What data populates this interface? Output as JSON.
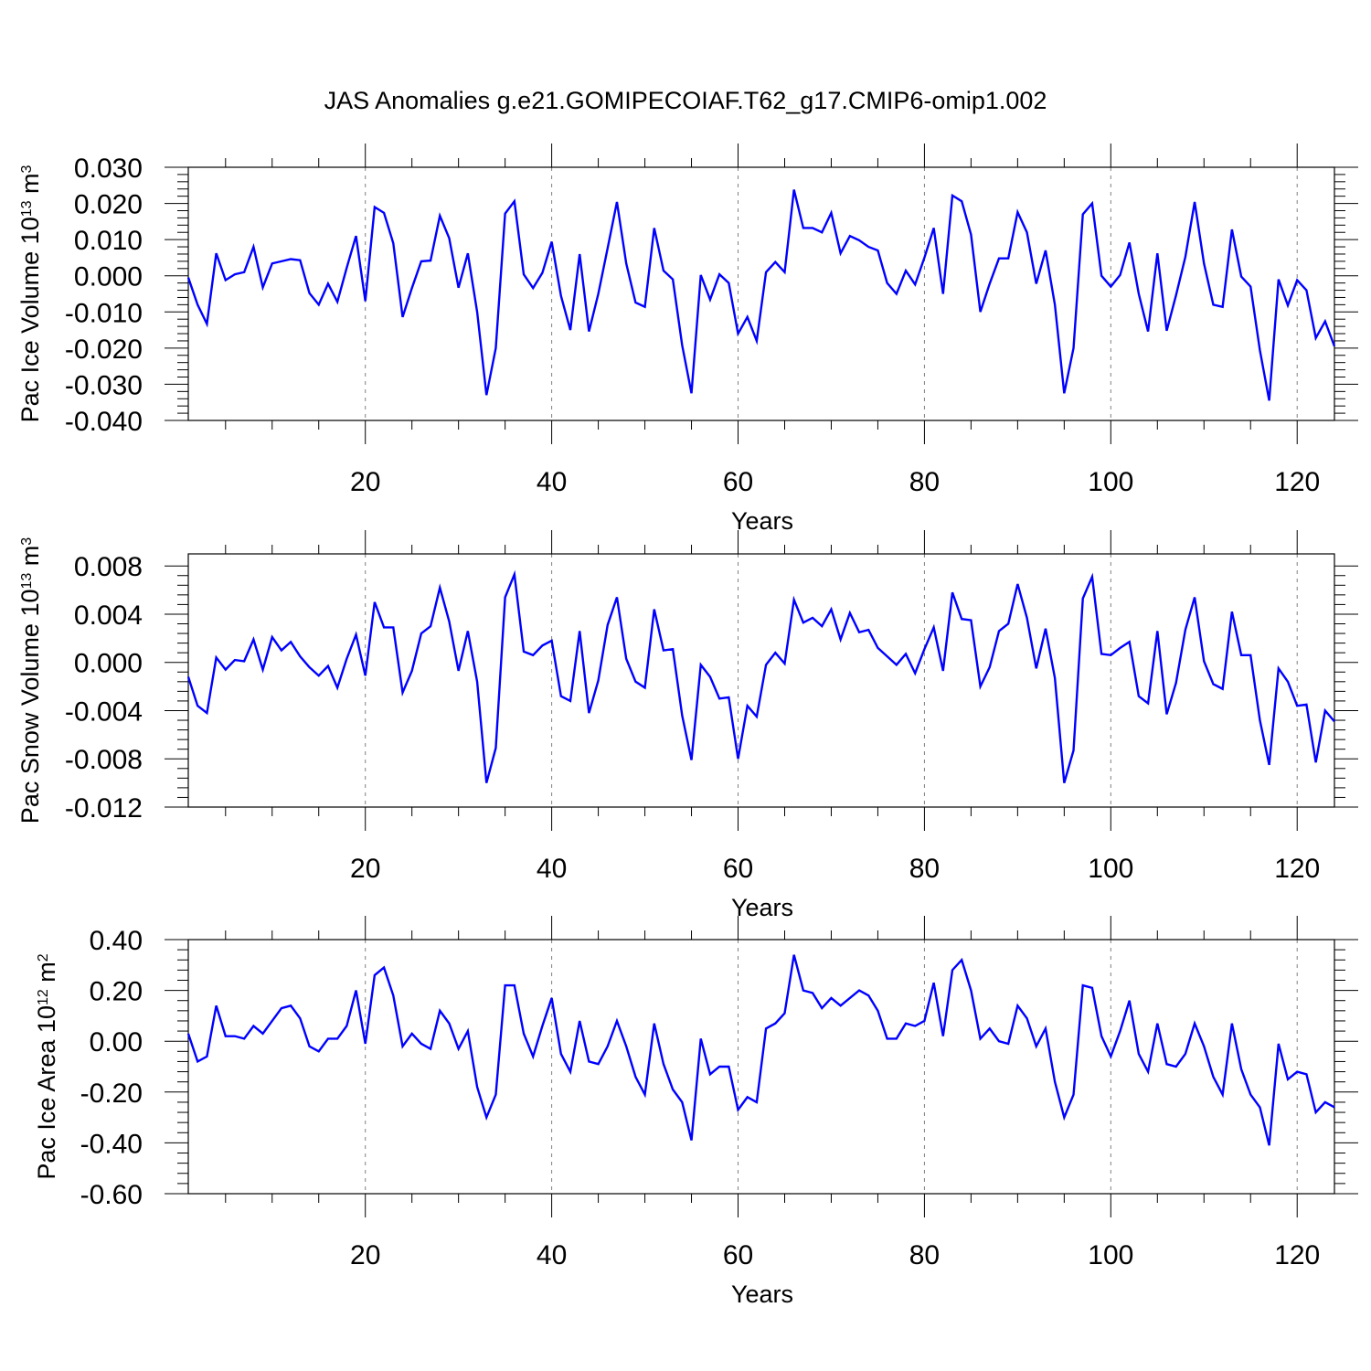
{
  "title": "JAS Anomalies g.e21.GOMIPECOIAF.T62_g17.CMIP6-omip1.002",
  "line_color": "#0000ff",
  "grid_color": "#808080",
  "chart_data": [
    {
      "type": "line",
      "ylabel": "Pac Ice Volume 10",
      "ylabel_exp": "13",
      "ylabel_unit": " m",
      "ylabel_unit_exp": "3",
      "xlabel": "Years",
      "xlim": [
        1,
        124
      ],
      "ylim": [
        -0.04,
        0.03
      ],
      "xticks": [
        20,
        40,
        60,
        80,
        100,
        120
      ],
      "xtick_labels": [
        "20",
        "40",
        "60",
        "80",
        "100",
        "120"
      ],
      "yticks": [
        -0.04,
        -0.03,
        -0.02,
        -0.01,
        0.0,
        0.01,
        0.02,
        0.03
      ],
      "ytick_labels": [
        "-0.040",
        "-0.030",
        "-0.020",
        "-0.010",
        "0.000",
        "0.010",
        "0.020",
        "0.030"
      ],
      "grid": "dashed vertical at major x ticks",
      "series": [
        {
          "name": "Pac Ice Volume",
          "values": [
            -0.0005,
            -0.008,
            -0.0133,
            0.0062,
            -0.0012,
            0.0004,
            0.001,
            0.008,
            -0.0032,
            0.0034,
            0.004,
            0.0046,
            0.0043,
            -0.0048,
            -0.008,
            -0.0022,
            -0.0072,
            0.0022,
            0.011,
            -0.007,
            0.019,
            0.0174,
            0.009,
            -0.0114,
            -0.0034,
            0.004,
            0.0042,
            0.0166,
            0.0104,
            -0.0033,
            0.0062,
            -0.01,
            -0.033,
            -0.02,
            0.0172,
            0.0206,
            0.0004,
            -0.0034,
            0.0008,
            0.0094,
            -0.0056,
            -0.015,
            0.006,
            -0.0154,
            -0.005,
            0.0076,
            0.0204,
            0.0034,
            -0.0074,
            -0.0086,
            0.0132,
            0.0014,
            -0.001,
            -0.0192,
            -0.0325,
            0.0002,
            -0.0066,
            0.0004,
            -0.002,
            -0.016,
            -0.0114,
            -0.018,
            0.001,
            0.0038,
            0.001,
            0.0238,
            0.0132,
            0.0132,
            0.012,
            0.0174,
            0.0062,
            0.011,
            0.0098,
            0.008,
            0.007,
            -0.002,
            -0.005,
            0.0014,
            -0.0024,
            0.005,
            0.0132,
            -0.005,
            0.0222,
            0.0206,
            0.0114,
            -0.01,
            -0.0022,
            0.0048,
            0.0048,
            0.0176,
            0.012,
            -0.0022,
            0.007,
            -0.008,
            -0.0325,
            -0.02,
            0.017,
            0.02,
            0.0,
            -0.003,
            0.0002,
            0.0092,
            -0.005,
            -0.0154,
            0.0062,
            -0.0152,
            -0.0054,
            0.0052,
            0.0204,
            0.0034,
            -0.008,
            -0.0086,
            0.0128,
            -0.0002,
            -0.003,
            -0.0206,
            -0.0345,
            -0.001,
            -0.0082,
            -0.0012,
            -0.004,
            -0.0172,
            -0.0126,
            -0.0195
          ]
        }
      ]
    },
    {
      "type": "line",
      "ylabel": "Pac Snow Volume 10",
      "ylabel_exp": "13",
      "ylabel_unit": " m",
      "ylabel_unit_exp": "3",
      "xlabel": "Years",
      "xlim": [
        1,
        124
      ],
      "ylim": [
        -0.012,
        0.009
      ],
      "xticks": [
        20,
        40,
        60,
        80,
        100,
        120
      ],
      "xtick_labels": [
        "20",
        "40",
        "60",
        "80",
        "100",
        "120"
      ],
      "yticks": [
        -0.012,
        -0.008,
        -0.004,
        0.0,
        0.004,
        0.008
      ],
      "ytick_labels": [
        "-0.012",
        "-0.008",
        "-0.004",
        "0.000",
        "0.004",
        "0.008"
      ],
      "grid": "dashed vertical at major x ticks",
      "series": [
        {
          "name": "Pac Snow Volume",
          "values": [
            -0.0012,
            -0.0036,
            -0.0042,
            0.0004,
            -0.0006,
            0.0002,
            0.0001,
            0.0019,
            -0.0006,
            0.0021,
            0.001,
            0.0017,
            0.0005,
            -0.0004,
            -0.0011,
            -0.0003,
            -0.0021,
            0.0003,
            0.0023,
            -0.0011,
            0.005,
            0.0029,
            0.0029,
            -0.0025,
            -0.0007,
            0.0024,
            0.003,
            0.0062,
            0.0034,
            -0.0007,
            0.0026,
            -0.0016,
            -0.01,
            -0.0071,
            0.0054,
            0.0073,
            0.0009,
            0.0006,
            0.0014,
            0.0018,
            -0.0028,
            -0.0032,
            0.0026,
            -0.0042,
            -0.0015,
            0.0031,
            0.0054,
            0.0003,
            -0.0016,
            -0.0021,
            0.0044,
            0.001,
            0.0011,
            -0.0044,
            -0.0081,
            -0.0002,
            -0.0012,
            -0.003,
            -0.0029,
            -0.008,
            -0.0036,
            -0.0045,
            -0.0002,
            0.0008,
            -0.0001,
            0.0052,
            0.0033,
            0.0037,
            0.003,
            0.0044,
            0.0019,
            0.0041,
            0.0025,
            0.0027,
            0.0012,
            0.0005,
            -0.0002,
            0.0007,
            -0.0009,
            0.0011,
            0.0029,
            -0.0007,
            0.0058,
            0.0036,
            0.0035,
            -0.002,
            -0.0004,
            0.0026,
            0.0032,
            0.0065,
            0.0037,
            -0.0005,
            0.0028,
            -0.0013,
            -0.01,
            -0.0073,
            0.0053,
            0.0071,
            0.0007,
            0.0006,
            0.0012,
            0.0017,
            -0.0028,
            -0.0034,
            0.0026,
            -0.0043,
            -0.0017,
            0.0027,
            0.0054,
            0.0001,
            -0.0018,
            -0.0022,
            0.0042,
            0.0006,
            0.0006,
            -0.0048,
            -0.0085,
            -0.0005,
            -0.0016,
            -0.0036,
            -0.0035,
            -0.0083,
            -0.004,
            -0.0049
          ]
        }
      ]
    },
    {
      "type": "line",
      "ylabel": "Pac Ice Area 10",
      "ylabel_exp": "12",
      "ylabel_unit": " m",
      "ylabel_unit_exp": "2",
      "xlabel": "Years",
      "xlim": [
        1,
        124
      ],
      "ylim": [
        -0.6,
        0.4
      ],
      "xticks": [
        20,
        40,
        60,
        80,
        100,
        120
      ],
      "xtick_labels": [
        "20",
        "40",
        "60",
        "80",
        "100",
        "120"
      ],
      "yticks": [
        -0.6,
        -0.4,
        -0.2,
        0.0,
        0.2,
        0.4
      ],
      "ytick_labels": [
        "-0.60",
        "-0.40",
        "-0.20",
        "0.00",
        "0.20",
        "0.40"
      ],
      "grid": "dashed vertical at major x ticks",
      "series": [
        {
          "name": "Pac Ice Area",
          "values": [
            0.03,
            -0.08,
            -0.06,
            0.14,
            0.02,
            0.02,
            0.01,
            0.06,
            0.03,
            0.08,
            0.13,
            0.14,
            0.09,
            -0.02,
            -0.04,
            0.01,
            0.01,
            0.06,
            0.2,
            -0.01,
            0.26,
            0.29,
            0.18,
            -0.02,
            0.03,
            -0.01,
            -0.03,
            0.12,
            0.07,
            -0.03,
            0.04,
            -0.18,
            -0.3,
            -0.21,
            0.22,
            0.22,
            0.03,
            -0.06,
            0.06,
            0.17,
            -0.05,
            -0.12,
            0.08,
            -0.08,
            -0.09,
            -0.02,
            0.08,
            -0.02,
            -0.14,
            -0.21,
            0.07,
            -0.09,
            -0.19,
            -0.24,
            -0.39,
            0.01,
            -0.13,
            -0.1,
            -0.1,
            -0.27,
            -0.22,
            -0.24,
            0.05,
            0.07,
            0.11,
            0.34,
            0.2,
            0.19,
            0.13,
            0.17,
            0.14,
            0.17,
            0.2,
            0.18,
            0.12,
            0.01,
            0.01,
            0.07,
            0.06,
            0.08,
            0.23,
            0.02,
            0.28,
            0.32,
            0.2,
            0.01,
            0.05,
            0.0,
            -0.01,
            0.14,
            0.09,
            -0.02,
            0.05,
            -0.16,
            -0.3,
            -0.21,
            0.22,
            0.21,
            0.02,
            -0.06,
            0.04,
            0.16,
            -0.05,
            -0.12,
            0.07,
            -0.09,
            -0.1,
            -0.05,
            0.07,
            -0.02,
            -0.14,
            -0.21,
            0.07,
            -0.11,
            -0.21,
            -0.26,
            -0.41,
            -0.01,
            -0.15,
            -0.12,
            -0.13,
            -0.28,
            -0.24,
            -0.26
          ]
        }
      ]
    }
  ]
}
